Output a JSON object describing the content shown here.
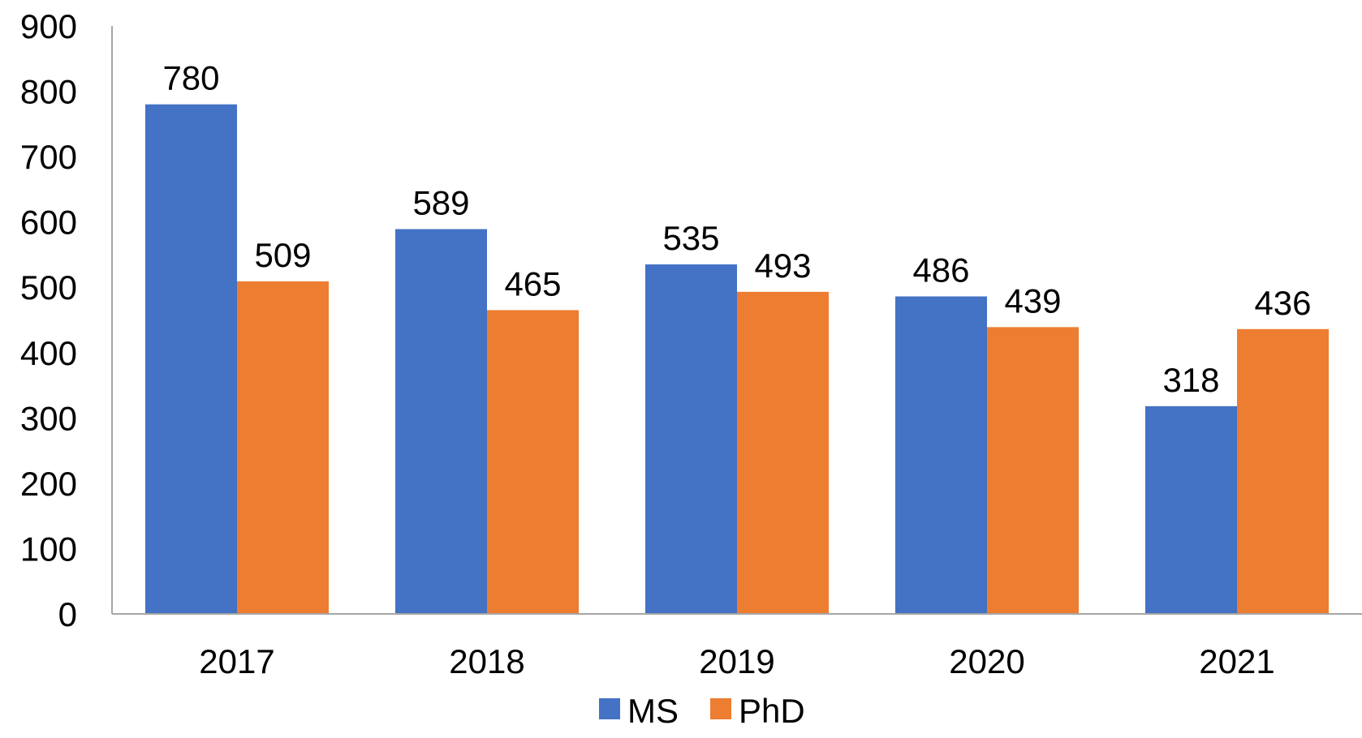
{
  "chart_data": {
    "type": "bar",
    "categories": [
      "2017",
      "2018",
      "2019",
      "2020",
      "2021"
    ],
    "series": [
      {
        "name": "MS",
        "values": [
          780,
          589,
          535,
          486,
          318
        ],
        "color": "#4472C4"
      },
      {
        "name": "PhD",
        "values": [
          509,
          465,
          493,
          439,
          436
        ],
        "color": "#ED7D31"
      }
    ],
    "title": "",
    "xlabel": "",
    "ylabel": "",
    "ylim": [
      0,
      900
    ],
    "yticks": [
      0,
      100,
      200,
      300,
      400,
      500,
      600,
      700,
      800,
      900
    ],
    "grid": false,
    "legend_position": "bottom",
    "data_labels": true,
    "axis_color": "#A6A6A6"
  }
}
